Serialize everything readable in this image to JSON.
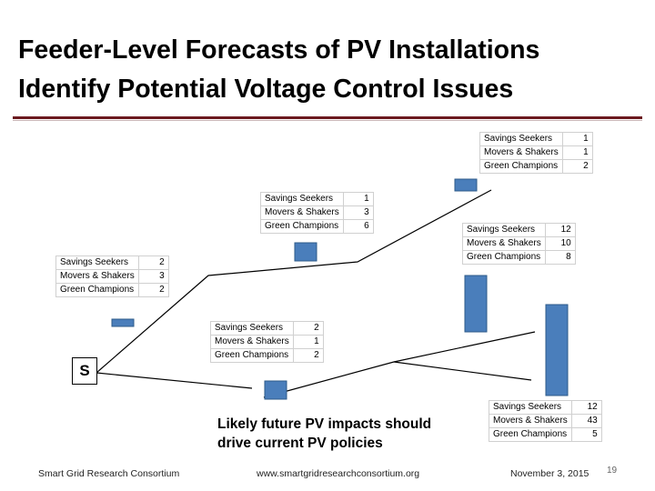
{
  "title_line1": "Feeder-Level Forecasts of PV Installations",
  "title_line2": "Identify Potential Voltage Control Issues",
  "substation_label": "S",
  "callout_line1": "Likely future PV impacts should",
  "callout_line2": "drive current PV policies",
  "segment_labels": [
    "Savings Seekers",
    "Movers & Shakers",
    "Green Champions"
  ],
  "node_tables": [
    {
      "values": [
        "1",
        "1",
        "2"
      ]
    },
    {
      "values": [
        "1",
        "3",
        "6"
      ]
    },
    {
      "values": [
        "12",
        "10",
        "8"
      ]
    },
    {
      "values": [
        "2",
        "3",
        "2"
      ]
    },
    {
      "values": [
        "2",
        "1",
        "2"
      ]
    },
    {
      "values": [
        "12",
        "43",
        "5"
      ]
    }
  ],
  "bar_color": "#4a7ebb",
  "bar_border_color": "#2e5b8a",
  "footer": {
    "org": "Smart Grid Research Consortium",
    "url": "www.smartgridresearchconsortium.org",
    "date": "November 3, 2015",
    "page": "19"
  }
}
